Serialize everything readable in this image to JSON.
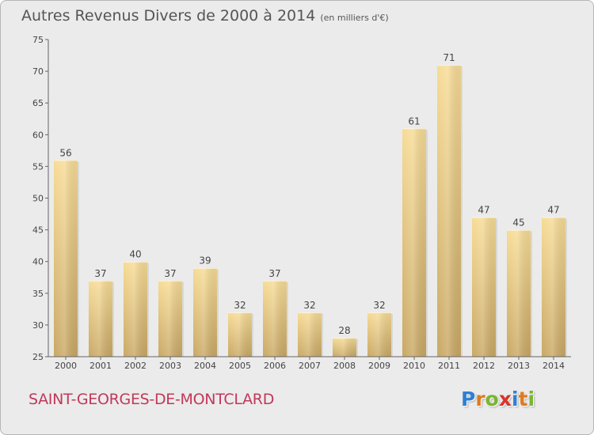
{
  "header": {
    "title": "Autres Revenus Divers de 2000 à 2014",
    "subtitle": "(en milliers d'€)"
  },
  "footer": {
    "commune": "SAINT-GEORGES-DE-MONTCLARD",
    "logo_text": "Proxiti",
    "logo_colors": [
      "#2f7fd0",
      "#e07a1f",
      "#7ab530",
      "#d9342b",
      "#2f7fd0",
      "#e07a1f",
      "#7ab530"
    ]
  },
  "colors": {
    "background": "#ebebeb",
    "bar_light": "#f7dc96",
    "bar_dark": "#c9a865",
    "text": "#555555",
    "commune": "#c0395a"
  },
  "chart_data": {
    "type": "bar",
    "categories": [
      "2000",
      "2001",
      "2002",
      "2003",
      "2004",
      "2005",
      "2006",
      "2007",
      "2008",
      "2009",
      "2010",
      "2011",
      "2012",
      "2013",
      "2014"
    ],
    "values": [
      56,
      37,
      40,
      37,
      39,
      32,
      37,
      32,
      28,
      32,
      61,
      71,
      47,
      45,
      47
    ],
    "title": "Autres Revenus Divers de 2000 à 2014",
    "subtitle": "(en milliers d'€)",
    "ylim": [
      25,
      75
    ],
    "yticks": [
      25,
      30,
      35,
      40,
      45,
      50,
      55,
      60,
      65,
      70,
      75
    ],
    "grid": false,
    "data_labels": true
  }
}
